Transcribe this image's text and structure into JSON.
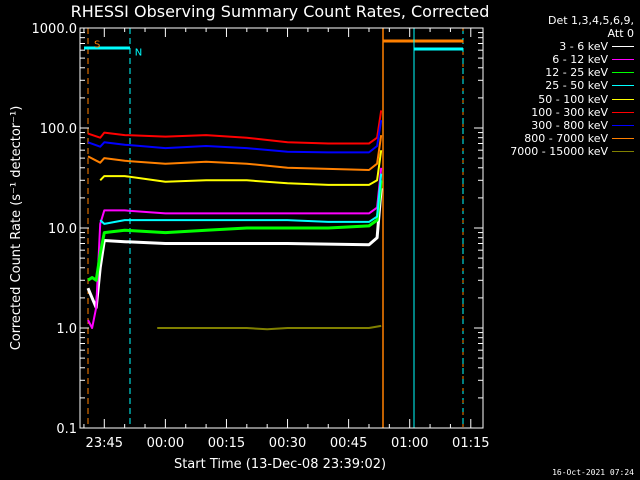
{
  "chart_data": {
    "type": "line",
    "title": "RHESSI Observing Summary Count Rates, Corrected",
    "xlabel": "Start Time (13-Dec-08 23:39:02)",
    "ylabel": "Corrected Count Rate (s⁻¹ detector⁻¹)",
    "y_scale": "log",
    "ylim": [
      0.1,
      1000
    ],
    "xlim": [
      "23:39:02",
      "01:18:00"
    ],
    "x_ticks": [
      "23:45",
      "00:00",
      "00:15",
      "00:30",
      "00:45",
      "01:00",
      "01:15"
    ],
    "y_ticks": [
      "0.1",
      "1.0",
      "10.0",
      "100.0",
      "1000.0"
    ],
    "legend_title": [
      "Det 1,3,4,5,6,9,",
      "Att 0"
    ],
    "legend_position": "outside-right",
    "series": [
      {
        "name": "3 - 6 keV",
        "color": "#ffffff",
        "x": [
          "23:41",
          "23:42",
          "23:43",
          "23:44",
          "23:45",
          "23:50",
          "00:00",
          "00:10",
          "00:20",
          "00:30",
          "00:40",
          "00:50",
          "00:52",
          "00:53"
        ],
        "y": [
          2.5,
          2.0,
          1.6,
          4.0,
          7.5,
          7.3,
          7.0,
          7.0,
          7.0,
          7.0,
          6.9,
          6.8,
          8.0,
          25
        ]
      },
      {
        "name": "6 - 12 keV",
        "color": "#ff00ff",
        "x": [
          "23:41",
          "23:42",
          "23:43",
          "23:44",
          "23:45",
          "23:50",
          "00:00",
          "00:10",
          "00:20",
          "00:30",
          "00:40",
          "00:50",
          "00:52",
          "00:53"
        ],
        "y": [
          1.2,
          1.0,
          1.6,
          11,
          15,
          15,
          14,
          14,
          14,
          14,
          14,
          14,
          16,
          40
        ]
      },
      {
        "name": "12 - 25 keV",
        "color": "#00ff00",
        "x": [
          "23:41",
          "23:42",
          "23:43",
          "23:44",
          "23:45",
          "23:50",
          "00:00",
          "00:10",
          "00:20",
          "00:30",
          "00:40",
          "00:50",
          "00:52",
          "00:53"
        ],
        "y": [
          3.0,
          3.2,
          3.0,
          5.5,
          9.0,
          9.5,
          9.0,
          9.5,
          10,
          10,
          10,
          10.5,
          12,
          30
        ]
      },
      {
        "name": "25 - 50 keV",
        "color": "#00ffff",
        "x": [
          "23:44",
          "23:45",
          "23:50",
          "00:00",
          "00:10",
          "00:20",
          "00:30",
          "00:40",
          "00:50",
          "00:52",
          "00:53"
        ],
        "y": [
          12,
          11,
          12,
          12,
          12,
          12,
          12,
          11.5,
          11.5,
          13,
          35
        ]
      },
      {
        "name": "50 - 100 keV",
        "color": "#ffff00",
        "x": [
          "23:44",
          "23:45",
          "23:50",
          "00:00",
          "00:10",
          "00:20",
          "00:30",
          "00:40",
          "00:50",
          "00:52",
          "00:53"
        ],
        "y": [
          30,
          33,
          33,
          29,
          30,
          30,
          28,
          27,
          27,
          30,
          60
        ]
      },
      {
        "name": "100 - 300 keV",
        "color": "#ff0000",
        "x": [
          "23:41",
          "23:44",
          "23:45",
          "23:50",
          "00:00",
          "00:10",
          "00:20",
          "00:30",
          "00:40",
          "00:50",
          "00:52",
          "00:53"
        ],
        "y": [
          88,
          80,
          90,
          85,
          82,
          85,
          80,
          72,
          70,
          70,
          80,
          150
        ]
      },
      {
        "name": "300 - 800 keV",
        "color": "#0000ff",
        "x": [
          "23:41",
          "23:44",
          "23:45",
          "23:50",
          "00:00",
          "00:10",
          "00:20",
          "00:30",
          "00:40",
          "00:50",
          "00:52",
          "00:53"
        ],
        "y": [
          72,
          65,
          72,
          68,
          63,
          66,
          63,
          58,
          57,
          57,
          66,
          120
        ]
      },
      {
        "name": "800 - 7000 keV",
        "color": "#ff8000",
        "x": [
          "23:41",
          "23:44",
          "23:45",
          "23:50",
          "00:00",
          "00:10",
          "00:20",
          "00:30",
          "00:40",
          "00:50",
          "00:52",
          "00:53"
        ],
        "y": [
          52,
          45,
          50,
          47,
          44,
          46,
          44,
          40,
          39,
          38,
          44,
          85
        ]
      },
      {
        "name": "7000 - 15000 keV",
        "color": "#808000",
        "x": [
          "23:58",
          "00:10",
          "00:20",
          "00:25",
          "00:30",
          "00:40",
          "00:50",
          "00:53"
        ],
        "y": [
          1.0,
          1.0,
          1.0,
          0.97,
          1.0,
          1.0,
          1.0,
          1.05
        ]
      }
    ],
    "markers": [
      {
        "label": "S",
        "color": "#ff8000",
        "x": "23:41",
        "y": 700
      },
      {
        "label": "N",
        "color": "#00ffff",
        "x": "23:51",
        "y": 580
      }
    ]
  },
  "timestamp": "16-Oct-2021 07:24"
}
